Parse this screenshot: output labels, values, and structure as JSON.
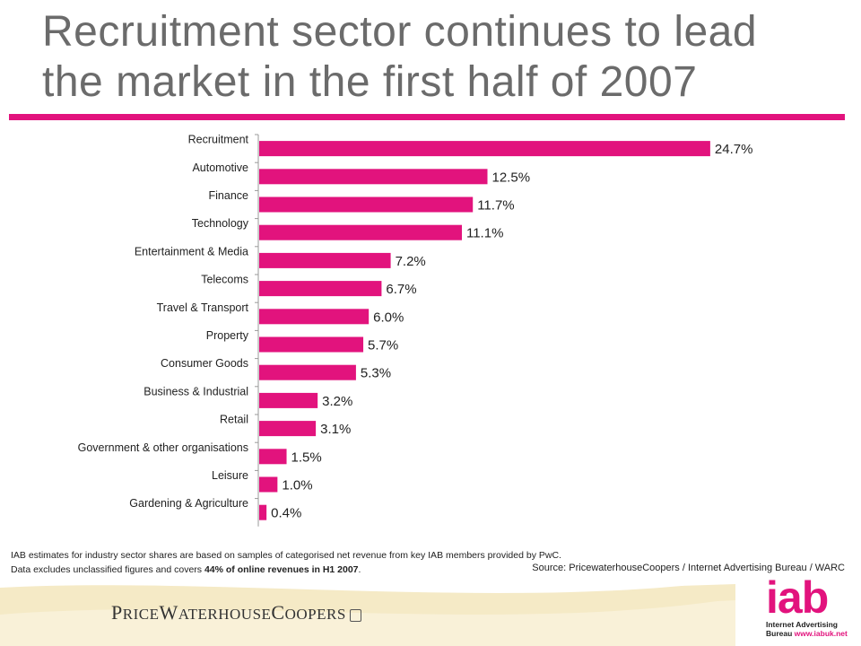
{
  "title_line1": "Recruitment sector continues to lead",
  "title_line2": "the market in the first half of 2007",
  "colors": {
    "accent": "#e2137d",
    "title": "#6b6b6b",
    "footer_band": "#f5eac6"
  },
  "chart_data": {
    "type": "bar",
    "orientation": "horizontal",
    "categories": [
      "Recruitment",
      "Automotive",
      "Finance",
      "Technology",
      "Entertainment & Media",
      "Telecoms",
      "Travel & Transport",
      "Property",
      "Consumer Goods",
      "Business & Industrial",
      "Retail",
      "Government & other organisations",
      "Leisure",
      "Gardening & Agriculture"
    ],
    "values": [
      24.7,
      12.5,
      11.7,
      11.1,
      7.2,
      6.7,
      6.0,
      5.7,
      5.3,
      3.2,
      3.1,
      1.5,
      1.0,
      0.4
    ],
    "value_labels": [
      "24.7%",
      "12.5%",
      "11.7%",
      "11.1%",
      "7.2%",
      "6.7%",
      "6.0%",
      "5.7%",
      "5.3%",
      "3.2%",
      "3.1%",
      "1.5%",
      "1.0%",
      "0.4%"
    ],
    "xlim": [
      0,
      25
    ],
    "grid": false,
    "legend": "none"
  },
  "notes": {
    "line1": "IAB estimates for industry sector shares are based on samples of categorised net revenue from key IAB members provided by PwC.",
    "line2_pre": "Data excludes unclassified figures and covers ",
    "line2_bold": "44% of online revenues  in H1 2007",
    "line2_post": "."
  },
  "source": "Source: PricewaterhouseCoopers / Internet  Advertising Bureau / WARC",
  "logos": {
    "pwc_p": "P",
    "pwc_rest1": "RICE",
    "pwc_w": "W",
    "pwc_rest2": "ATERHOUSE",
    "pwc_c": "C",
    "pwc_rest3": "OOPERS",
    "iab_word": "iab",
    "iab_sub1": "Internet Advertising",
    "iab_sub2_pre": "Bureau ",
    "iab_sub2_url": "www.iabuk.net"
  }
}
